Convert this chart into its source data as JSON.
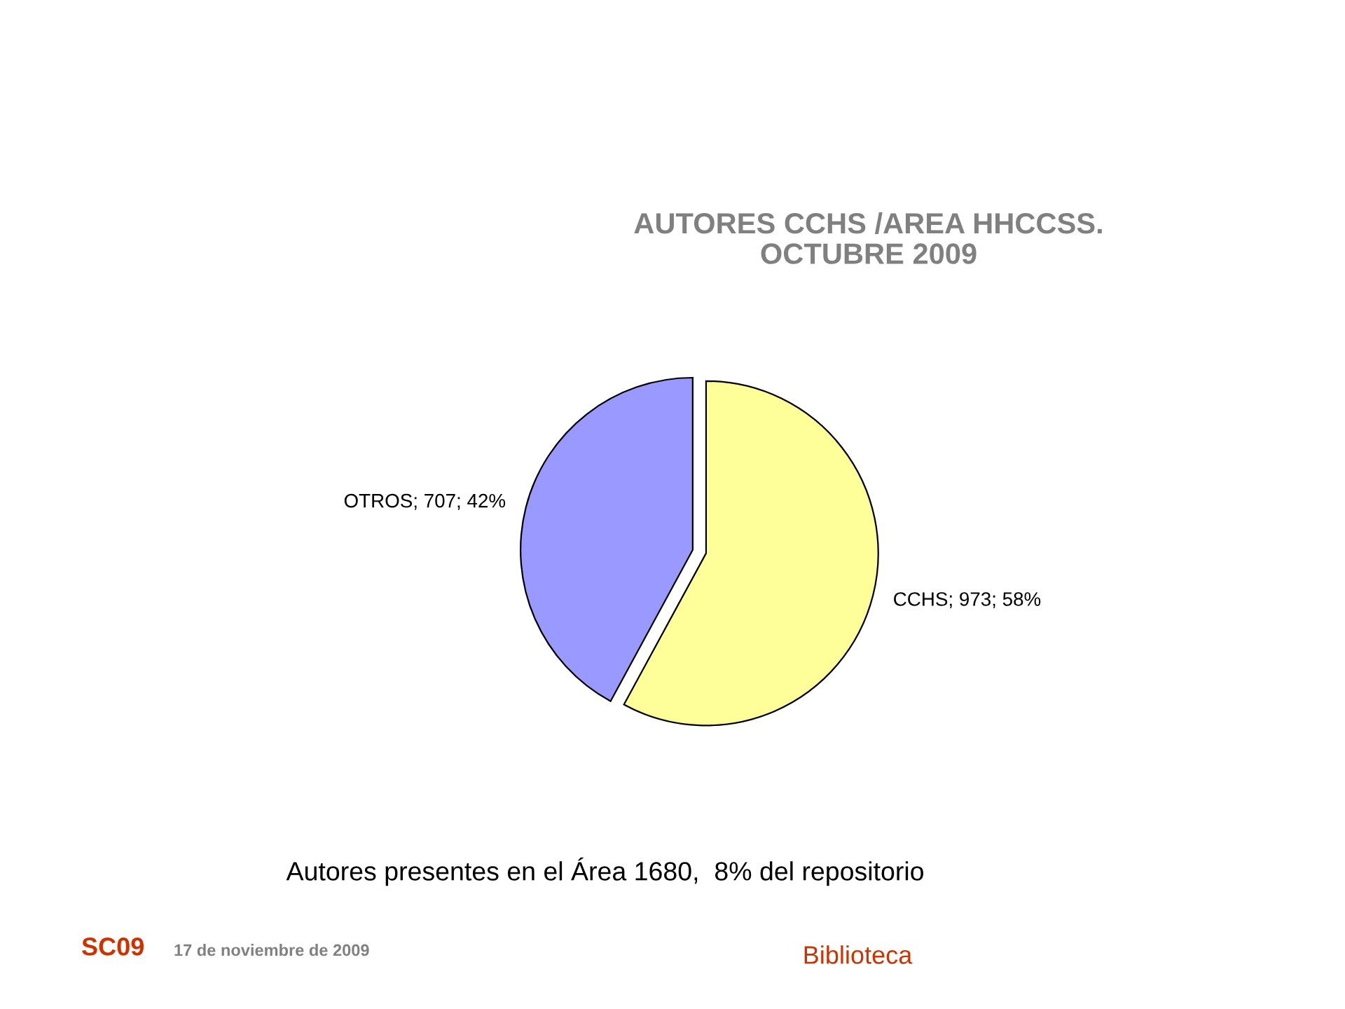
{
  "chart_data": {
    "type": "pie",
    "title": "AUTORES CCHS /AREA HHCCSS.\nOCTUBRE 2009",
    "categories": [
      "CCHS",
      "OTROS"
    ],
    "values": [
      973,
      707
    ],
    "colors": [
      "#ffff99",
      "#9999ff"
    ],
    "value_labels": [
      "973; 58%",
      "707; 42%"
    ],
    "annotations": [
      "Autores presentes en el Área 1680,  8% del repositorio",
      "SC09",
      "17 de noviembre de 2009",
      "Biblioteca"
    ]
  }
}
